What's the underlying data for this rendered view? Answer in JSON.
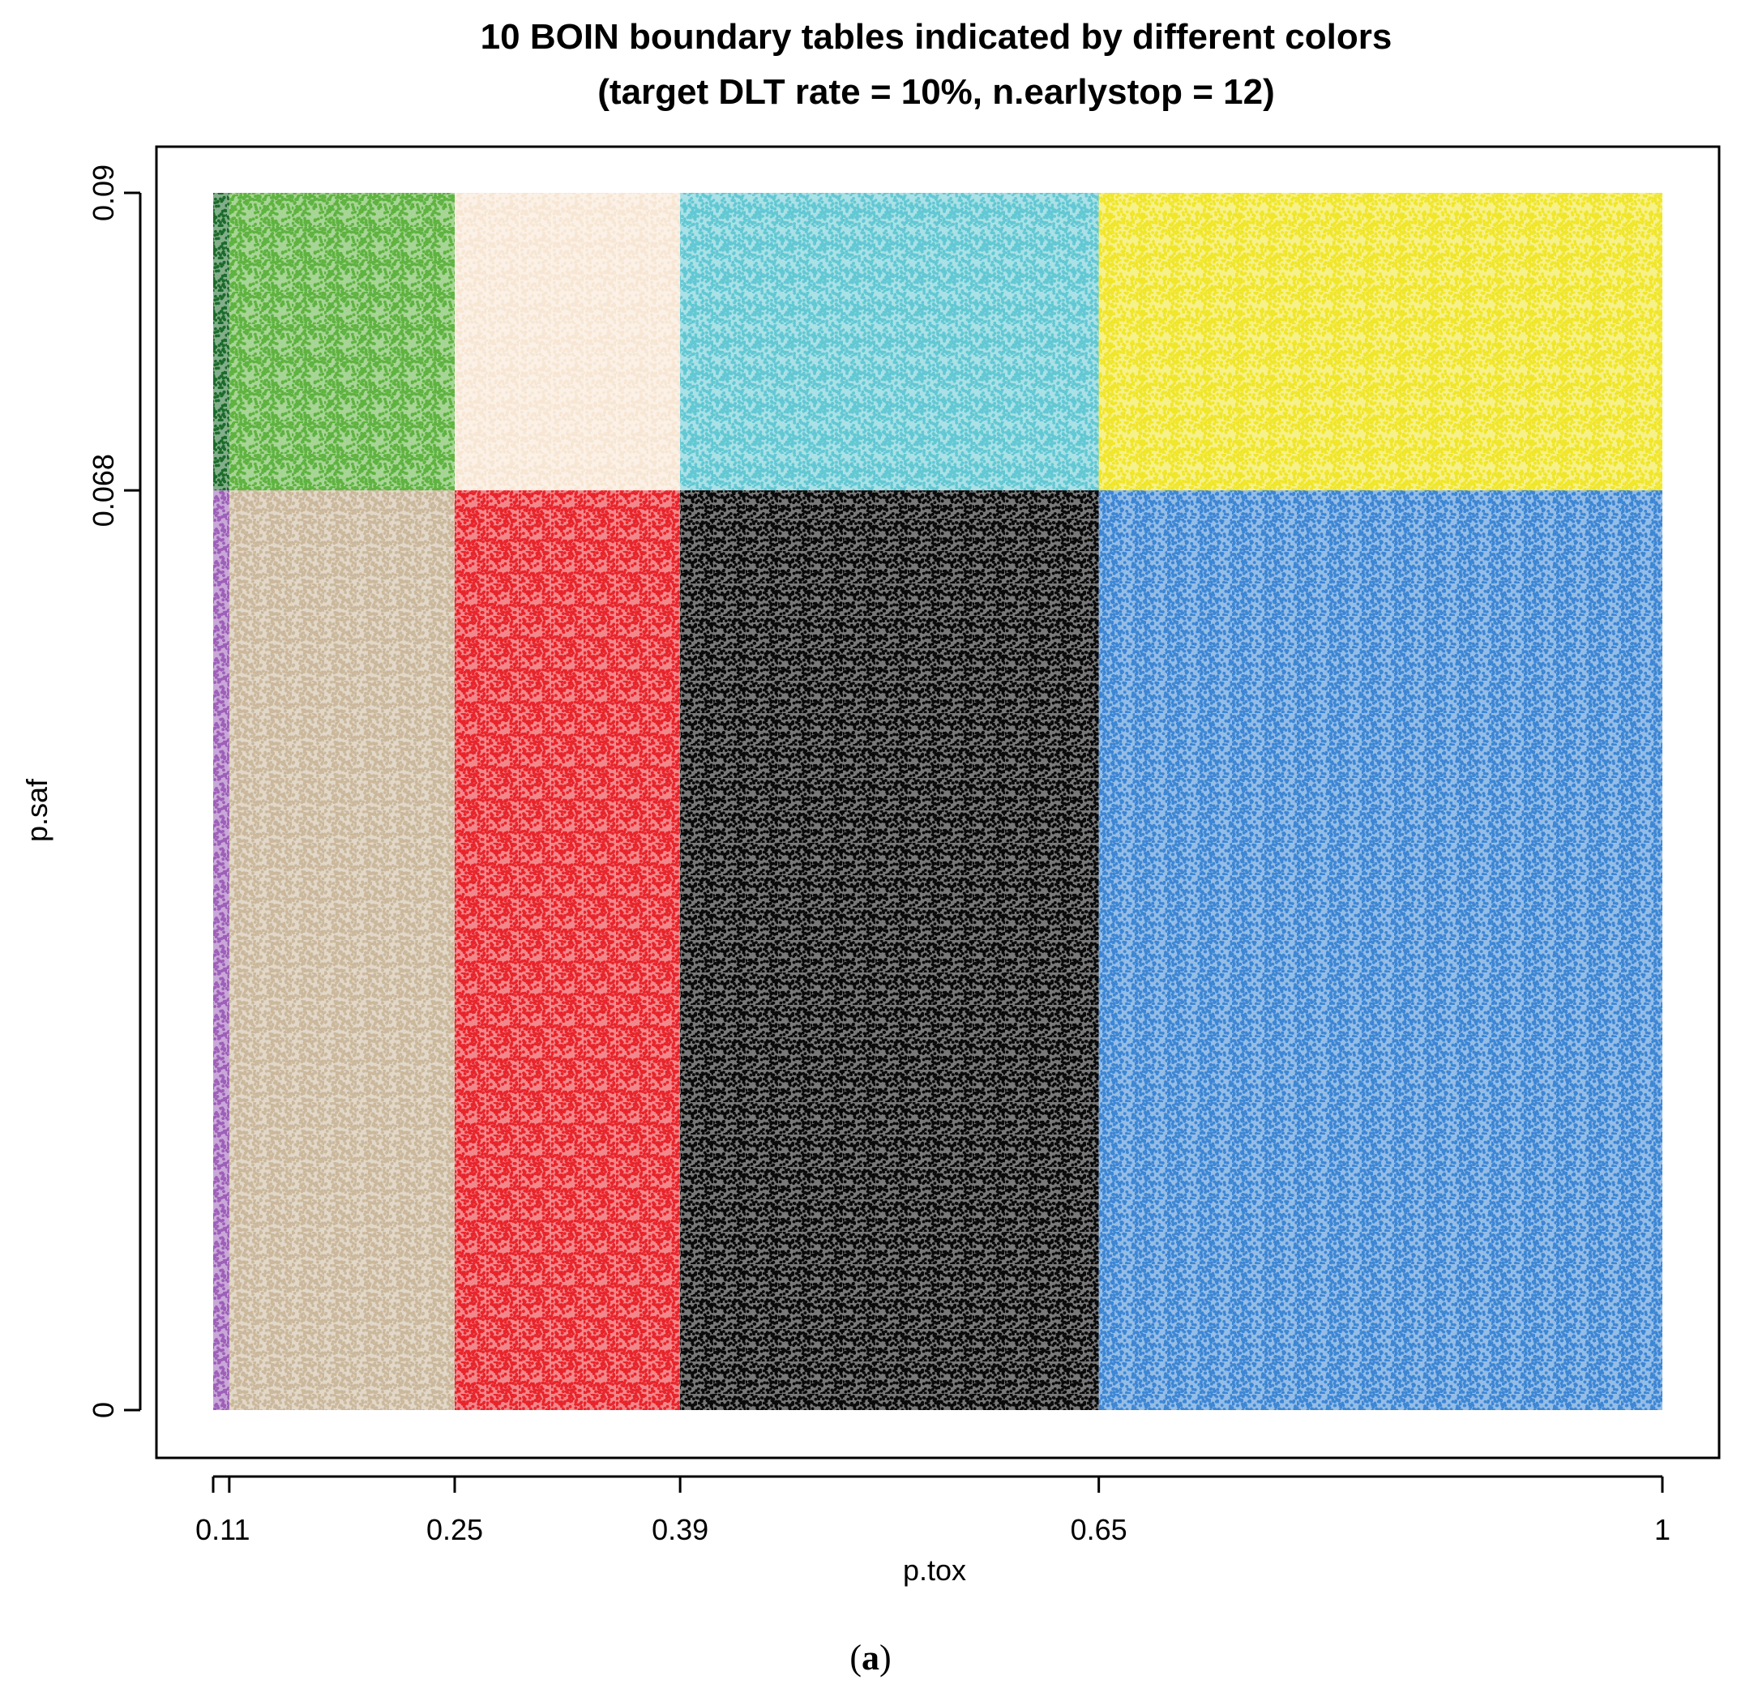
{
  "chart_data": {
    "type": "scatter",
    "title": "10 BOIN boundary tables indicated by different colors",
    "subtitle": "(target DLT rate = 10%, n.earlystop = 12)",
    "xlabel": "p.tox",
    "ylabel": "p.saf",
    "xlim": [
      0.1,
      1.0
    ],
    "ylim": [
      0,
      0.09
    ],
    "x_ticks": [
      0.1,
      0.11,
      0.25,
      0.39,
      0.65,
      1.0
    ],
    "x_tick_labels": [
      "",
      "0.11",
      "0.25",
      "0.39",
      "0.65",
      "1"
    ],
    "y_ticks": [
      0,
      0.068,
      0.09
    ],
    "y_tick_labels": [
      "0",
      "0.068",
      "0.09"
    ],
    "grid": false,
    "legend": "none",
    "regions": [
      {
        "x": [
          0.1,
          0.11
        ],
        "y": [
          0.068,
          0.09
        ],
        "color": "#1b6b2a"
      },
      {
        "x": [
          0.11,
          0.25
        ],
        "y": [
          0.068,
          0.09
        ],
        "color": "#5fb340"
      },
      {
        "x": [
          0.25,
          0.39
        ],
        "y": [
          0.068,
          0.09
        ],
        "color": "#f7e6d3"
      },
      {
        "x": [
          0.39,
          0.65
        ],
        "y": [
          0.068,
          0.09
        ],
        "color": "#62c8d3"
      },
      {
        "x": [
          0.65,
          1.0
        ],
        "y": [
          0.068,
          0.09
        ],
        "color": "#f0e62a"
      },
      {
        "x": [
          0.1,
          0.11
        ],
        "y": [
          0,
          0.068
        ],
        "color": "#9d5fb8"
      },
      {
        "x": [
          0.11,
          0.25
        ],
        "y": [
          0,
          0.068
        ],
        "color": "#cbb89c"
      },
      {
        "x": [
          0.25,
          0.39
        ],
        "y": [
          0,
          0.068
        ],
        "color": "#e8242b"
      },
      {
        "x": [
          0.39,
          0.65
        ],
        "y": [
          0,
          0.068
        ],
        "color": "#0a0a0a"
      },
      {
        "x": [
          0.65,
          1.0
        ],
        "y": [
          0,
          0.068
        ],
        "color": "#3d86d4"
      }
    ]
  },
  "caption": {
    "open": "(",
    "letter": "a",
    "close": ")"
  }
}
